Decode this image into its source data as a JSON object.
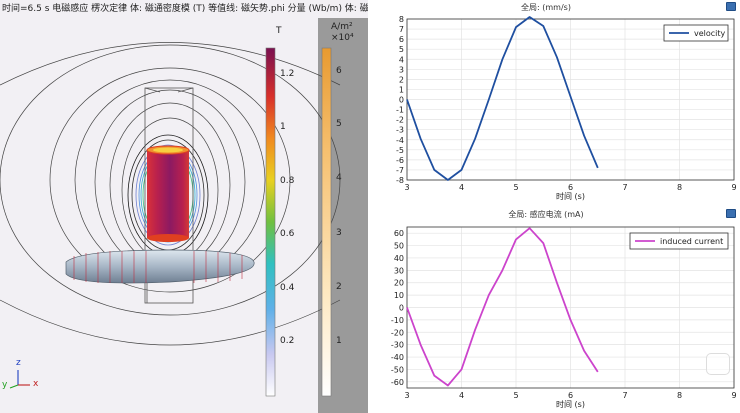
{
  "caption": "时间=6.5 s 电磁感应 楞次定律 体: 磁通密度模 (T) 等值线: 磁矢势.phi 分量 (Wb/m) 体: 磁通密",
  "colorbar_left": {
    "unit": "T",
    "ticks": [
      "1.2",
      "1",
      "0.8",
      "0.6",
      "0.4",
      "0.2"
    ]
  },
  "colorbar_right": {
    "unit": "A/m²",
    "unit_exp": "×10⁴",
    "ticks": [
      "6",
      "5",
      "4",
      "3",
      "2",
      "1"
    ]
  },
  "axes_triad": {
    "z": "z",
    "y": "y",
    "x": "x"
  },
  "colors": {
    "velocity": "#1f4fa0",
    "current": "#cc44cc",
    "cylinder": "#b01a5a",
    "ring": "#a9b8c8"
  },
  "chart_data": [
    {
      "type": "line",
      "title": "全局: (mm/s)",
      "xlabel": "时间 (s)",
      "ylabel": "",
      "xlim": [
        3,
        9
      ],
      "ylim": [
        -8,
        8
      ],
      "xticks": [
        3,
        4,
        5,
        6,
        7,
        8,
        9
      ],
      "yticks": [
        8,
        7,
        6,
        5,
        4,
        3,
        2,
        1,
        0,
        -1,
        -2,
        -3,
        -4,
        -5,
        -6,
        -7,
        -8
      ],
      "grid": true,
      "legend": "top-right",
      "series": [
        {
          "name": "velocity",
          "color": "#1f4fa0",
          "x": [
            3.0,
            3.25,
            3.5,
            3.75,
            4.0,
            4.25,
            4.5,
            4.75,
            5.0,
            5.25,
            5.5,
            5.75,
            6.0,
            6.25,
            6.5
          ],
          "y": [
            0.0,
            -3.9,
            -7.0,
            -8.0,
            -7.0,
            -3.9,
            0.0,
            4.0,
            7.2,
            8.2,
            7.3,
            4.2,
            0.3,
            -3.6,
            -6.8
          ]
        }
      ]
    },
    {
      "type": "line",
      "title": "全局: 感应电流 (mA)",
      "xlabel": "时间 (s)",
      "ylabel": "",
      "xlim": [
        3,
        9
      ],
      "ylim": [
        -65,
        65
      ],
      "xticks": [
        3,
        4,
        5,
        6,
        7,
        8,
        9
      ],
      "yticks": [
        60,
        50,
        40,
        30,
        20,
        10,
        0,
        -10,
        -20,
        -30,
        -40,
        -50,
        -60
      ],
      "grid": true,
      "legend": "top-right",
      "series": [
        {
          "name": "induced current",
          "color": "#cc44cc",
          "x": [
            3.0,
            3.25,
            3.5,
            3.75,
            4.0,
            4.25,
            4.5,
            4.75,
            5.0,
            5.25,
            5.5,
            5.75,
            6.0,
            6.25,
            6.5
          ],
          "y": [
            0.0,
            -30.0,
            -55.0,
            -63.0,
            -50.0,
            -18.0,
            10.0,
            30.0,
            55.0,
            64.0,
            52.0,
            20.0,
            -10.0,
            -35.0,
            -52.0
          ]
        }
      ]
    }
  ]
}
